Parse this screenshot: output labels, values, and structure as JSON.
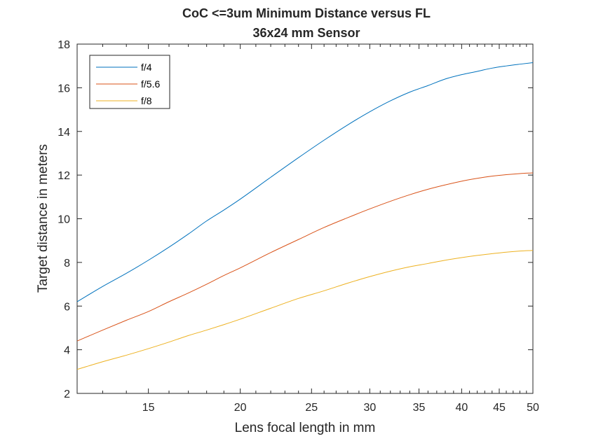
{
  "chart_data": {
    "type": "line",
    "title": [
      "CoC <=3um Minimum Distance versus FL",
      "36x24 mm Sensor"
    ],
    "xlabel": "Lens focal length in mm",
    "ylabel": "Target distance in meters",
    "xscale": "log",
    "xlim": [
      12,
      50
    ],
    "ylim": [
      2,
      18
    ],
    "xticks": [
      15,
      20,
      25,
      30,
      35,
      40,
      45,
      50
    ],
    "yticks": [
      2,
      4,
      6,
      8,
      10,
      12,
      14,
      16,
      18
    ],
    "grid": false,
    "legend_position": "top-left",
    "x": [
      12,
      13,
      14,
      15,
      16,
      17,
      18,
      19,
      20,
      22,
      24,
      26,
      28,
      30,
      32,
      34,
      36,
      38,
      40,
      42,
      44,
      46,
      48,
      50
    ],
    "series": [
      {
        "name": "f/4",
        "color": "#0072BD",
        "values": [
          6.2,
          6.9,
          7.5,
          8.1,
          8.7,
          9.3,
          9.9,
          10.4,
          10.9,
          11.9,
          12.8,
          13.6,
          14.3,
          14.9,
          15.4,
          15.8,
          16.1,
          16.4,
          16.6,
          16.75,
          16.9,
          17.0,
          17.08,
          17.15
        ]
      },
      {
        "name": "f/5.6",
        "color": "#D95319",
        "values": [
          4.4,
          4.9,
          5.35,
          5.75,
          6.2,
          6.6,
          7.0,
          7.4,
          7.75,
          8.45,
          9.05,
          9.6,
          10.05,
          10.45,
          10.8,
          11.1,
          11.35,
          11.55,
          11.72,
          11.85,
          11.95,
          12.02,
          12.07,
          12.1
        ]
      },
      {
        "name": "f/8",
        "color": "#EDB120",
        "values": [
          3.1,
          3.45,
          3.75,
          4.05,
          4.35,
          4.65,
          4.9,
          5.15,
          5.4,
          5.9,
          6.35,
          6.7,
          7.05,
          7.35,
          7.6,
          7.8,
          7.95,
          8.1,
          8.22,
          8.32,
          8.4,
          8.47,
          8.52,
          8.55
        ]
      }
    ]
  }
}
